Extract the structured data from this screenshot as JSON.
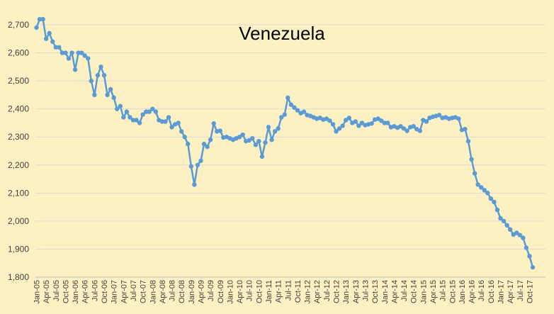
{
  "chart_data": {
    "type": "line",
    "title": "Venezuela",
    "xlabel": "",
    "ylabel": "",
    "ylim": [
      1800,
      2700
    ],
    "grid": true,
    "legend": "none",
    "yticks": [
      "1,800",
      "1,900",
      "2,000",
      "2,100",
      "2,200",
      "2,300",
      "2,400",
      "2,500",
      "2,600",
      "2,700"
    ],
    "xtick_labels": [
      "Jan-05",
      "Apr-05",
      "Jul-05",
      "Oct-05",
      "Jan-06",
      "Apr-06",
      "Jul-06",
      "Oct-06",
      "Jan-07",
      "Apr-07",
      "Jul-07",
      "Oct-07",
      "Jan-08",
      "Apr-08",
      "Jul-08",
      "Oct-08",
      "Jan-09",
      "Apr-09",
      "Jul-09",
      "Oct-09",
      "Jan-10",
      "Apr-10",
      "Jul-10",
      "Oct-10",
      "Jan-11",
      "Apr-11",
      "Jul-11",
      "Oct-11",
      "Jan-12",
      "Apr-12",
      "Jul-12",
      "Oct-12",
      "Jan-13",
      "Apr-13",
      "Jul-13",
      "Oct-13",
      "Jan-14",
      "Apr-14",
      "Jul-14",
      "Oct-14",
      "Jan-15",
      "Apr-15",
      "Jul-15",
      "Oct-15",
      "Jan-16",
      "Apr-16",
      "Jul-16",
      "Oct-16",
      "Jan-17",
      "Apr-17",
      "Jul-17",
      "Oct-17"
    ],
    "series": [
      {
        "name": "",
        "color": "#5B9BD5",
        "values": [
          2690,
          2720,
          2720,
          2650,
          2670,
          2640,
          2620,
          2620,
          2600,
          2600,
          2580,
          2600,
          2540,
          2600,
          2600,
          2590,
          2580,
          2500,
          2450,
          2520,
          2550,
          2520,
          2450,
          2470,
          2440,
          2400,
          2410,
          2370,
          2390,
          2370,
          2360,
          2360,
          2350,
          2380,
          2390,
          2390,
          2400,
          2390,
          2360,
          2355,
          2355,
          2370,
          2335,
          2345,
          2350,
          2320,
          2300,
          2275,
          2195,
          2130,
          2200,
          2215,
          2275,
          2265,
          2290,
          2348,
          2320,
          2322,
          2298,
          2300,
          2295,
          2290,
          2295,
          2300,
          2308,
          2285,
          2288,
          2295,
          2272,
          2285,
          2230,
          2280,
          2335,
          2290,
          2320,
          2330,
          2370,
          2380,
          2440,
          2415,
          2405,
          2395,
          2385,
          2390,
          2378,
          2375,
          2370,
          2365,
          2368,
          2362,
          2365,
          2358,
          2345,
          2320,
          2330,
          2340,
          2360,
          2368,
          2350,
          2355,
          2340,
          2350,
          2342,
          2345,
          2348,
          2362,
          2365,
          2358,
          2350,
          2350,
          2335,
          2338,
          2333,
          2338,
          2330,
          2322,
          2335,
          2338,
          2328,
          2322,
          2360,
          2355,
          2368,
          2372,
          2375,
          2378,
          2368,
          2370,
          2365,
          2368,
          2370,
          2365,
          2325,
          2328,
          2285,
          2220,
          2170,
          2130,
          2120,
          2110,
          2100,
          2080,
          2068,
          2040,
          2010,
          2000,
          1985,
          1970,
          1952,
          1958,
          1950,
          1940,
          1905,
          1875,
          1835
        ]
      }
    ]
  }
}
